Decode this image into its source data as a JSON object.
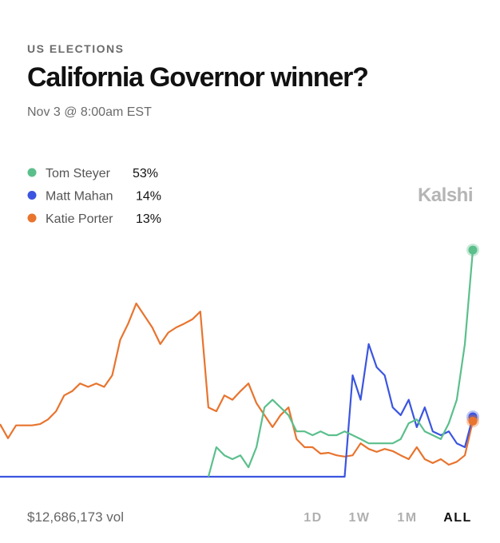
{
  "chart_data": {
    "type": "line",
    "kicker": "US ELECTIONS",
    "title": "California Governor winner?",
    "subtitle": "Nov 3 @ 8:00am EST",
    "watermark": "Kalshi",
    "volume": "$12,686,173 vol",
    "ranges": [
      "1D",
      "1W",
      "1M",
      "ALL"
    ],
    "active_range": "ALL",
    "ylim": [
      0,
      56
    ],
    "series": [
      {
        "name": "Tom Steyer",
        "color": "#5bbf8c",
        "current": {
          "value": 53,
          "label": "53%"
        },
        "values": [
          null,
          null,
          null,
          null,
          null,
          null,
          null,
          null,
          null,
          null,
          null,
          null,
          null,
          null,
          null,
          null,
          null,
          null,
          null,
          null,
          null,
          null,
          null,
          null,
          null,
          null,
          0,
          6.9,
          5,
          4.1,
          5,
          2.2,
          6.9,
          16.2,
          18,
          16.2,
          14.4,
          10.6,
          10.6,
          9.7,
          10.6,
          9.7,
          9.7,
          10.6,
          9.7,
          8.8,
          7.8,
          7.8,
          7.8,
          7.8,
          8.8,
          12.5,
          13.4,
          10.6,
          9.7,
          8.8,
          12.5,
          18,
          31,
          53
        ]
      },
      {
        "name": "Matt Mahan",
        "color": "#3b55e0",
        "current": {
          "value": 14,
          "label": "14%"
        },
        "values": [
          0,
          0,
          0,
          0,
          0,
          0,
          0,
          0,
          0,
          0,
          0,
          0,
          0,
          0,
          0,
          0,
          0,
          0,
          0,
          0,
          0,
          0,
          0,
          0,
          0,
          0,
          0,
          0,
          0,
          0,
          0,
          0,
          0,
          0,
          0,
          0,
          0,
          0,
          0,
          0,
          0,
          0,
          0,
          0,
          23.7,
          18,
          31,
          25.6,
          23.7,
          16.2,
          14.4,
          18,
          11.6,
          16.2,
          10.6,
          9.7,
          10.6,
          7.8,
          6.9,
          14
        ]
      },
      {
        "name": "Katie Porter",
        "color": "#e8742e",
        "current": {
          "value": 13,
          "label": "13%"
        },
        "values": [
          12.3,
          9,
          12,
          12,
          12,
          12.3,
          13.4,
          15.3,
          19,
          20,
          21.8,
          21,
          21.8,
          21,
          23.7,
          32,
          35.8,
          40.5,
          37.7,
          34.9,
          31,
          33.7,
          34.9,
          35.8,
          36.8,
          38.6,
          16.2,
          15.3,
          19,
          18,
          20,
          21.8,
          17.2,
          14.4,
          11.6,
          14.4,
          16.2,
          8.8,
          6.9,
          6.9,
          5.4,
          5.6,
          5,
          4.7,
          5,
          7.8,
          6.5,
          5.8,
          6.5,
          6,
          5,
          4.1,
          6.9,
          4.1,
          3.2,
          4.1,
          2.8,
          3.5,
          5,
          13
        ]
      }
    ]
  }
}
